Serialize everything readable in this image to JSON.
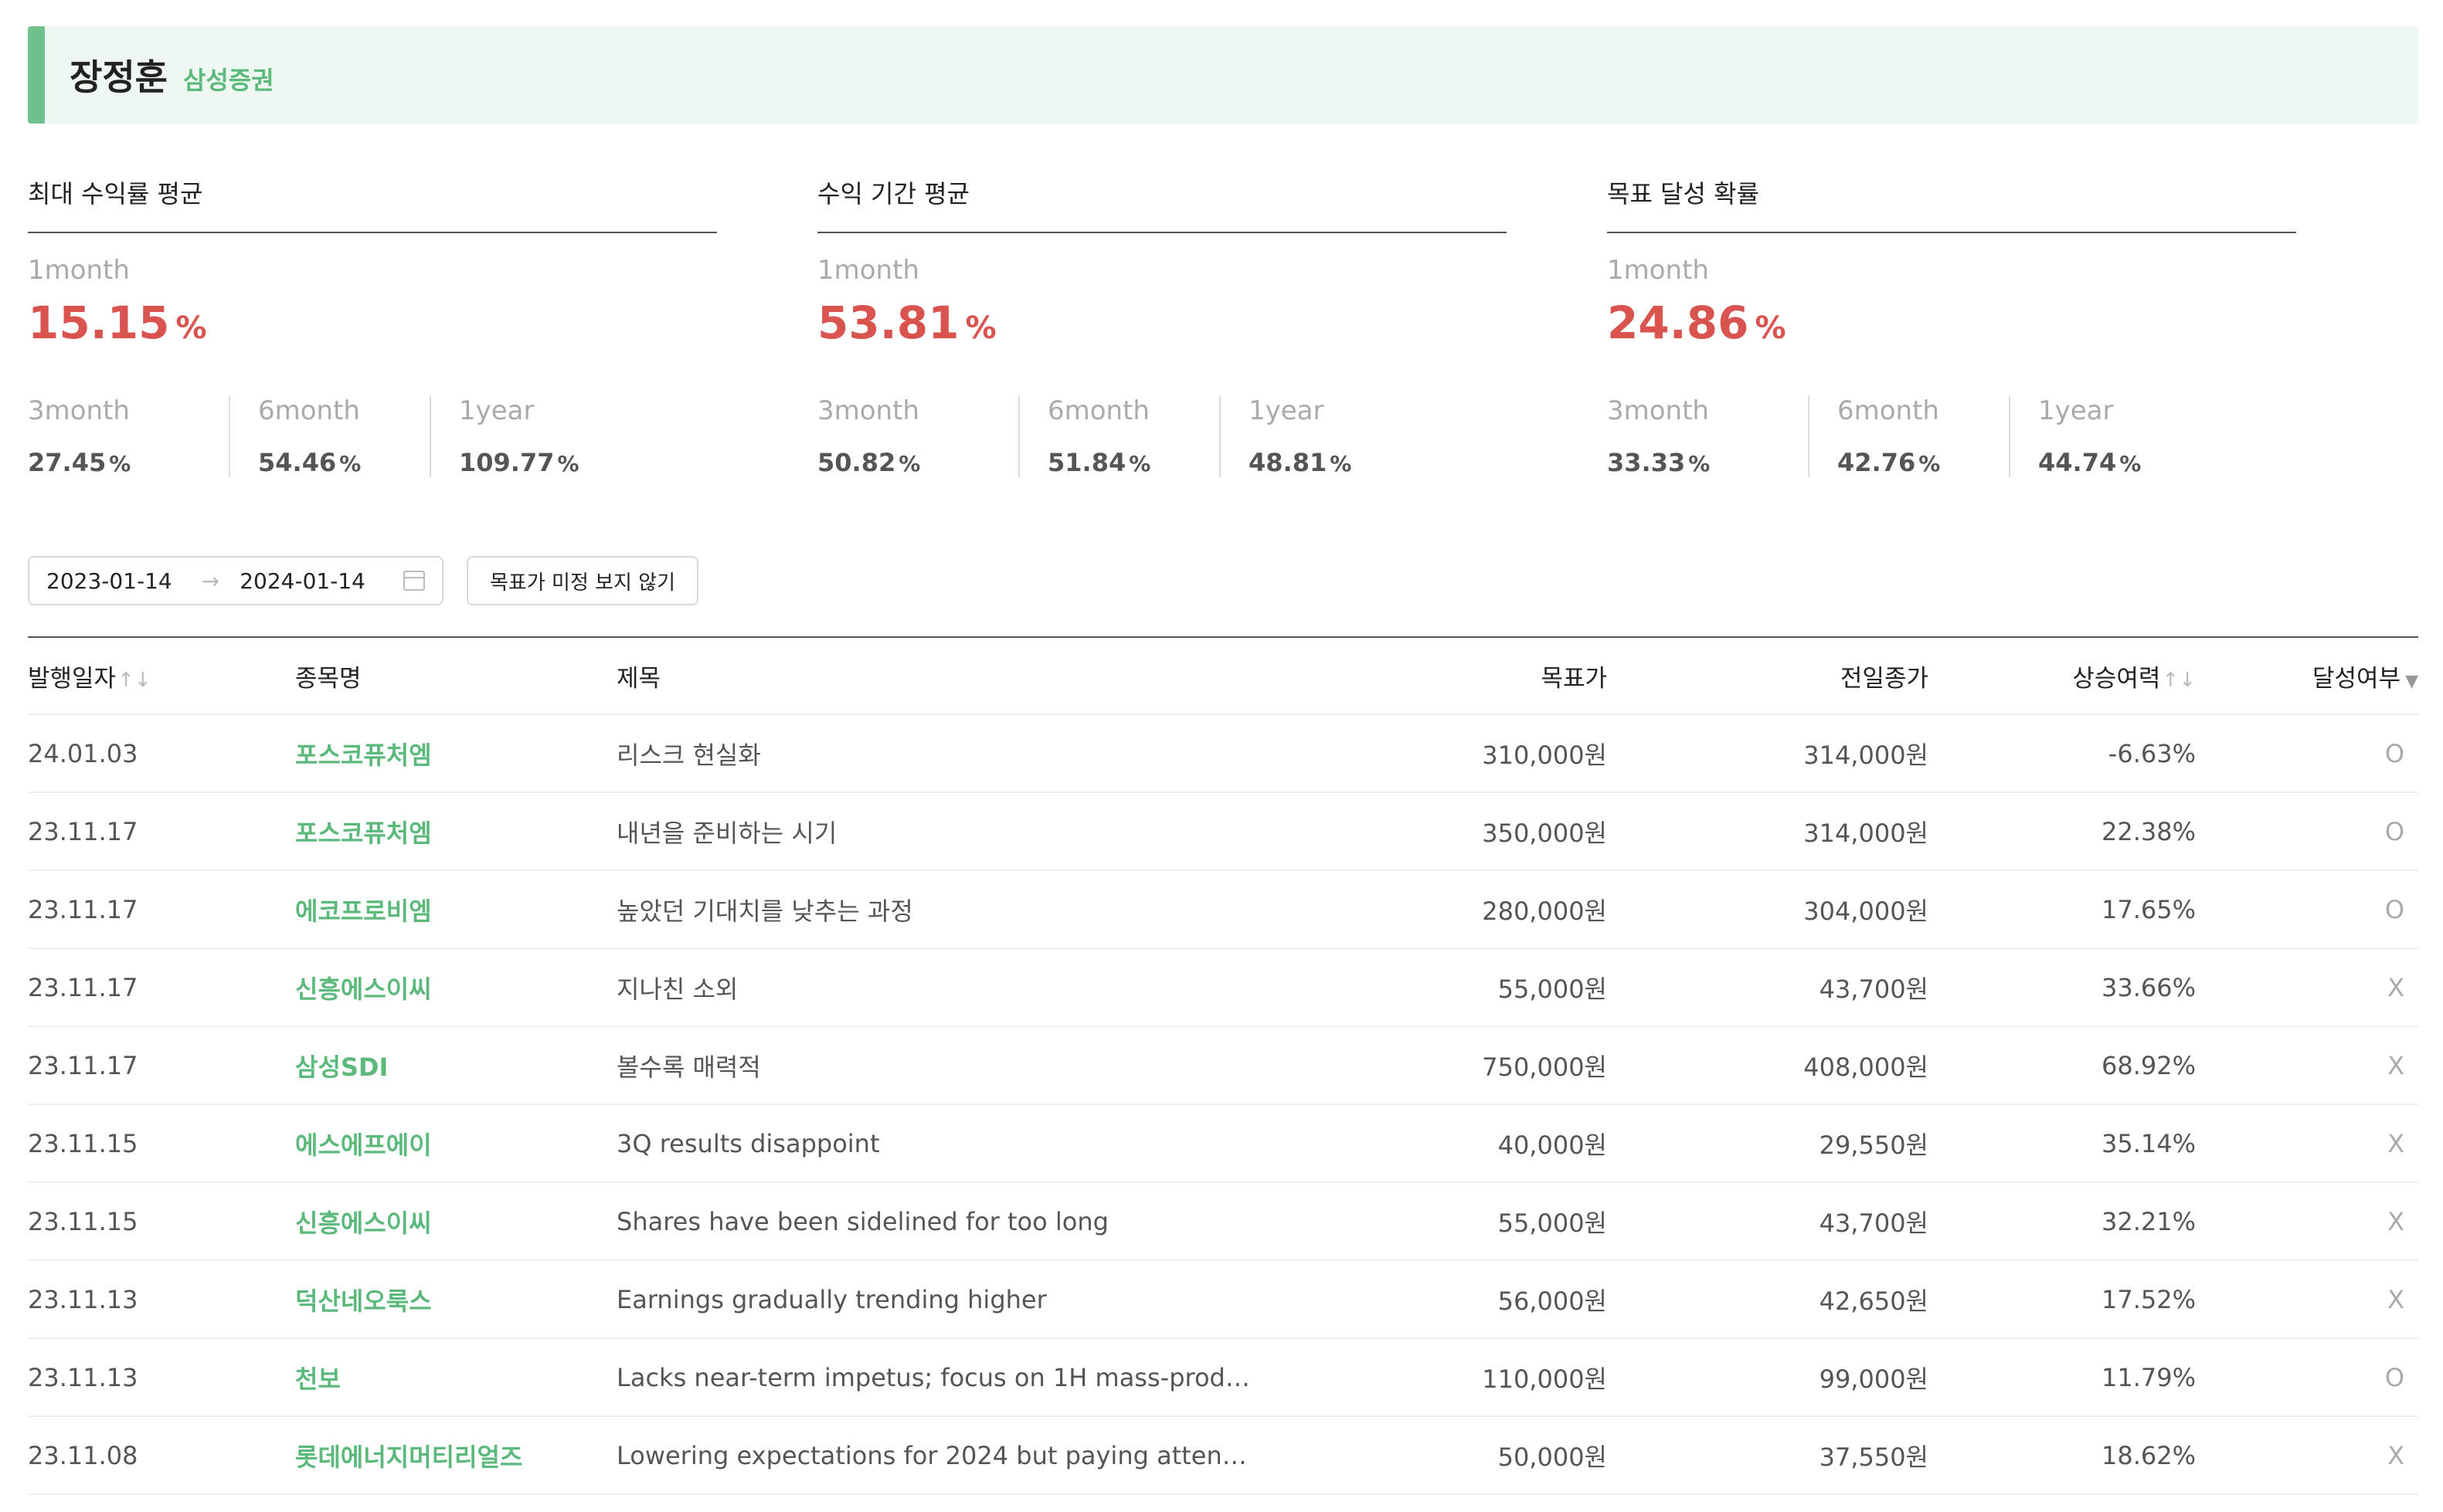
{
  "header": {
    "name": "장정훈",
    "firm": "삼성증권"
  },
  "stats": [
    {
      "title": "최대 수익률 평균",
      "main": {
        "label": "1month",
        "value": "15.15",
        "unit": "%"
      },
      "sub": [
        {
          "label": "3month",
          "value": "27.45",
          "unit": "%"
        },
        {
          "label": "6month",
          "value": "54.46",
          "unit": "%"
        },
        {
          "label": "1year",
          "value": "109.77",
          "unit": "%"
        }
      ]
    },
    {
      "title": "수익 기간 평균",
      "main": {
        "label": "1month",
        "value": "53.81",
        "unit": "%"
      },
      "sub": [
        {
          "label": "3month",
          "value": "50.82",
          "unit": "%"
        },
        {
          "label": "6month",
          "value": "51.84",
          "unit": "%"
        },
        {
          "label": "1year",
          "value": "48.81",
          "unit": "%"
        }
      ]
    },
    {
      "title": "목표 달성 확률",
      "main": {
        "label": "1month",
        "value": "24.86",
        "unit": "%"
      },
      "sub": [
        {
          "label": "3month",
          "value": "33.33",
          "unit": "%"
        },
        {
          "label": "6month",
          "value": "42.76",
          "unit": "%"
        },
        {
          "label": "1year",
          "value": "44.74",
          "unit": "%"
        }
      ]
    }
  ],
  "filters": {
    "start_date": "2023-01-14",
    "end_date": "2024-01-14",
    "range_separator_icon": "arrow-right-icon",
    "calendar_icon": "calendar-icon",
    "hide_no_target_label": "목표가 미정 보지 않기"
  },
  "table": {
    "columns": {
      "date": "발행일자",
      "stock": "종목명",
      "title": "제목",
      "target": "목표가",
      "prev_close": "전일종가",
      "upside": "상승여력",
      "achieved": "달성여부"
    },
    "sort_icon": "↑↓",
    "filter_icon": "▼",
    "rows": [
      {
        "date": "24.01.03",
        "stock": "포스코퓨처엠",
        "title": "리스크 현실화",
        "target": "310,000원",
        "prev_close": "314,000원",
        "upside": "-6.63%",
        "achieved": "O"
      },
      {
        "date": "23.11.17",
        "stock": "포스코퓨처엠",
        "title": "내년을 준비하는 시기",
        "target": "350,000원",
        "prev_close": "314,000원",
        "upside": "22.38%",
        "achieved": "O"
      },
      {
        "date": "23.11.17",
        "stock": "에코프로비엠",
        "title": "높았던 기대치를 낮추는 과정",
        "target": "280,000원",
        "prev_close": "304,000원",
        "upside": "17.65%",
        "achieved": "O"
      },
      {
        "date": "23.11.17",
        "stock": "신흥에스이씨",
        "title": "지나친 소외",
        "target": "55,000원",
        "prev_close": "43,700원",
        "upside": "33.66%",
        "achieved": "X"
      },
      {
        "date": "23.11.17",
        "stock": "삼성SDI",
        "title": "볼수록 매력적",
        "target": "750,000원",
        "prev_close": "408,000원",
        "upside": "68.92%",
        "achieved": "X"
      },
      {
        "date": "23.11.15",
        "stock": "에스에프에이",
        "title": "3Q results disappoint",
        "target": "40,000원",
        "prev_close": "29,550원",
        "upside": "35.14%",
        "achieved": "X"
      },
      {
        "date": "23.11.15",
        "stock": "신흥에스이씨",
        "title": "Shares have been sidelined for too long",
        "target": "55,000원",
        "prev_close": "43,700원",
        "upside": "32.21%",
        "achieved": "X"
      },
      {
        "date": "23.11.13",
        "stock": "덕산네오룩스",
        "title": "Earnings gradually trending higher",
        "target": "56,000원",
        "prev_close": "42,650원",
        "upside": "17.52%",
        "achieved": "X"
      },
      {
        "date": "23.11.13",
        "stock": "천보",
        "title": "Lacks near-term impetus; focus on 1H mass-produ...",
        "target": "110,000원",
        "prev_close": "99,000원",
        "upside": "11.79%",
        "achieved": "O"
      },
      {
        "date": "23.11.08",
        "stock": "롯데에너지머티리얼즈",
        "title": "Lowering expectations for 2024 but paying attenti...",
        "target": "50,000원",
        "prev_close": "37,550원",
        "upside": "18.62%",
        "achieved": "X"
      }
    ]
  }
}
